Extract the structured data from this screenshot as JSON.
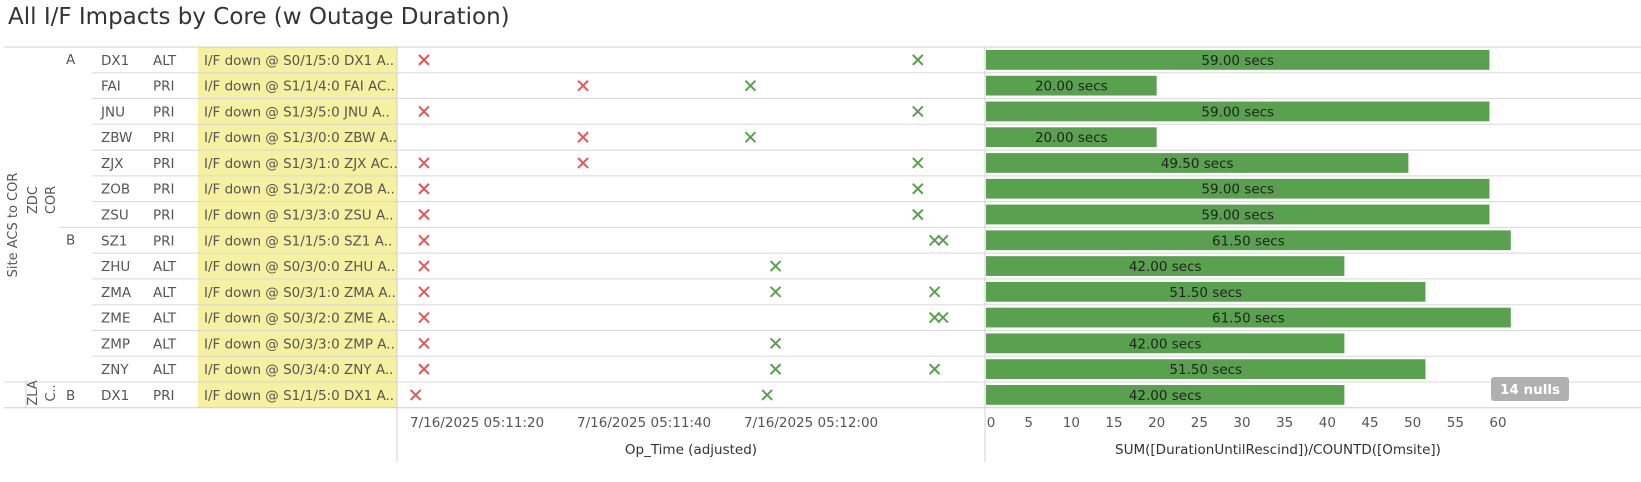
{
  "title": "All I/F Impacts by Core (w Outage Duration)",
  "headers": {
    "level1": "Site ACS to COR",
    "level2_top": "ZDC",
    "level3_top": "COR",
    "level2_bottom": "ZLA",
    "level3_bottom": "C.."
  },
  "colors": {
    "bar": "#59a14f",
    "down_mark": "#e15759",
    "up_mark": "#59a14f",
    "highlight": "#f5f1a1",
    "nulls_badge": "#b0b0b0"
  },
  "rows": [
    {
      "group": "A",
      "site": "DX1",
      "role": "ALT",
      "event": "I/F down @ S0/1/5:0 DX1 A..",
      "down_t": [
        1.0
      ],
      "up_t": [
        60.0
      ]
    },
    {
      "group": "",
      "site": "FAI",
      "role": "PRI",
      "event": "I/F down @ S1/1/4:0 FAI AC..",
      "down_t": [
        20.0
      ],
      "up_t": [
        40.0
      ]
    },
    {
      "group": "",
      "site": "JNU",
      "role": "PRI",
      "event": "I/F down @ S1/3/5:0 JNU A..",
      "down_t": [
        1.0
      ],
      "up_t": [
        60.0
      ]
    },
    {
      "group": "",
      "site": "ZBW",
      "role": "PRI",
      "event": "I/F down @ S1/3/0:0 ZBW A..",
      "down_t": [
        20.0
      ],
      "up_t": [
        40.0
      ]
    },
    {
      "group": "",
      "site": "ZJX",
      "role": "PRI",
      "event": "I/F down @ S1/3/1:0 ZJX AC..",
      "down_t": [
        1.0,
        20.0
      ],
      "up_t": [
        60.0
      ]
    },
    {
      "group": "",
      "site": "ZOB",
      "role": "PRI",
      "event": "I/F down @ S1/3/2:0 ZOB A..",
      "down_t": [
        1.0
      ],
      "up_t": [
        60.0
      ]
    },
    {
      "group": "",
      "site": "ZSU",
      "role": "PRI",
      "event": "I/F down @ S1/3/3:0 ZSU A..",
      "down_t": [
        1.0
      ],
      "up_t": [
        60.0
      ]
    },
    {
      "group": "B",
      "site": "SZ1",
      "role": "PRI",
      "event": "I/F down @ S1/1/5:0 SZ1 A..",
      "down_t": [
        1.0
      ],
      "up_t": [
        62.0,
        63.0
      ]
    },
    {
      "group": "",
      "site": "ZHU",
      "role": "ALT",
      "event": "I/F down @ S0/3/0:0 ZHU A..",
      "down_t": [
        1.0
      ],
      "up_t": [
        43.0
      ]
    },
    {
      "group": "",
      "site": "ZMA",
      "role": "ALT",
      "event": "I/F down @ S0/3/1:0 ZMA A..",
      "down_t": [
        1.0
      ],
      "up_t": [
        43.0,
        62.0
      ]
    },
    {
      "group": "",
      "site": "ZME",
      "role": "ALT",
      "event": "I/F down @ S0/3/2:0 ZME A..",
      "down_t": [
        1.0
      ],
      "up_t": [
        62.0,
        63.0
      ]
    },
    {
      "group": "",
      "site": "ZMP",
      "role": "ALT",
      "event": "I/F down @ S0/3/3:0 ZMP A..",
      "down_t": [
        1.0
      ],
      "up_t": [
        43.0
      ]
    },
    {
      "group": "",
      "site": "ZNY",
      "role": "ALT",
      "event": "I/F down @ S0/3/4:0 ZNY A..",
      "down_t": [
        1.0
      ],
      "up_t": [
        43.0,
        62.0
      ]
    },
    {
      "group": "B",
      "site": "DX1",
      "role": "PRI",
      "event": "I/F down @ S1/1/5:0 DX1 A..",
      "down_t": [
        0.0
      ],
      "up_t": [
        42.0
      ]
    }
  ],
  "chart_data": [
    {
      "type": "scatter",
      "xlabel": "Op_Time (adjusted)",
      "x_ticks": [
        "7/16/2025 05:11:20",
        "7/16/2025 05:11:40",
        "7/16/2025 05:12:00"
      ],
      "x_tick_offsets_seconds": [
        0,
        20,
        40
      ],
      "xlim_seconds": [
        -3,
        67
      ],
      "note_marks": "down_t = red x (interface down), up_t = green x (restored), seconds after 7/16/2025 05:11:20"
    },
    {
      "type": "bar",
      "orientation": "horizontal",
      "xlabel": "SUM([DurationUntilRescind])/COUNTD([Omsite])",
      "xlim": [
        0,
        63
      ],
      "x_ticks": [
        0,
        5,
        10,
        15,
        20,
        25,
        30,
        35,
        40,
        45,
        50,
        55,
        60
      ],
      "categories": [
        "DX1",
        "FAI",
        "JNU",
        "ZBW",
        "ZJX",
        "ZOB",
        "ZSU",
        "SZ1",
        "ZHU",
        "ZMA",
        "ZME",
        "ZMP",
        "ZNY",
        "DX1"
      ],
      "values": [
        59.0,
        20.0,
        59.0,
        20.0,
        49.5,
        59.0,
        59.0,
        61.5,
        42.0,
        51.5,
        61.5,
        42.0,
        51.5,
        42.0
      ],
      "value_labels": [
        "59.00 secs",
        "20.00 secs",
        "59.00 secs",
        "20.00 secs",
        "49.50 secs",
        "59.00 secs",
        "59.00 secs",
        "61.50 secs",
        "42.00 secs",
        "51.50 secs",
        "61.50 secs",
        "42.00 secs",
        "51.50 secs",
        "42.00 secs"
      ],
      "nulls_badge": "14 nulls"
    }
  ]
}
